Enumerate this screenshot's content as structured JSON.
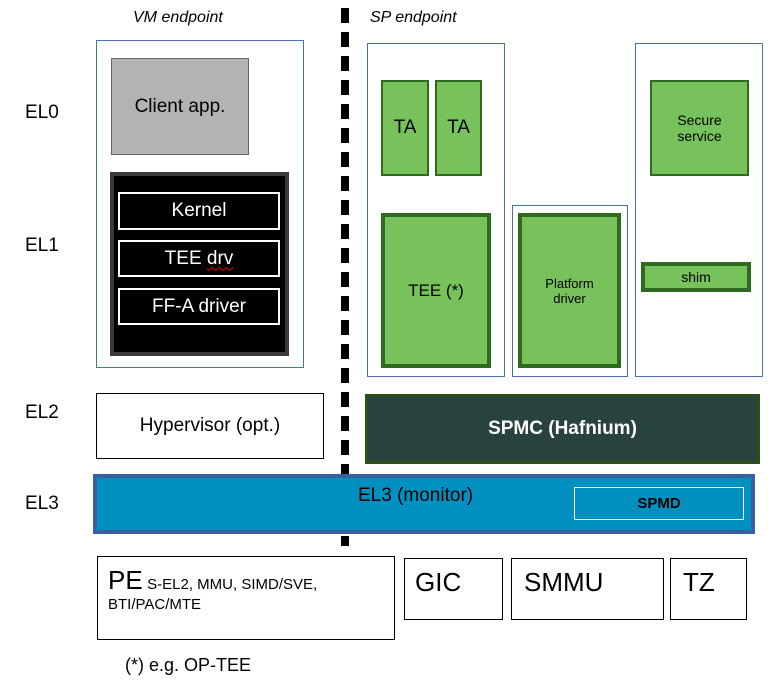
{
  "headers": {
    "vm": "VM endpoint",
    "sp": "SP endpoint"
  },
  "levels": {
    "el0": "EL0",
    "el1": "EL1",
    "el2": "EL2",
    "el3": "EL3"
  },
  "vm": {
    "client": "Client app.",
    "kernel": "Kernel",
    "tee_drv": "TEE drv",
    "ffa": "FF-A driver",
    "hypervisor": "Hypervisor (opt.)"
  },
  "sp": {
    "ta1": "TA",
    "ta2": "TA",
    "tee": "TEE (*)",
    "platform": "Platform driver",
    "secure_service": "Secure service",
    "shim": "shim",
    "spmc": "SPMC (Hafnium)"
  },
  "el3": {
    "monitor": "EL3 (monitor)",
    "spmd": "SPMD"
  },
  "hw": {
    "pe": "PE",
    "pe_features_1": "S-EL2, MMU, SIMD/SVE,",
    "pe_features_2": "BTI/PAC/MTE",
    "gic": "GIC",
    "smmu": "SMMU",
    "tz": "TZ"
  },
  "footnote": "(*) e.g. OP-TEE",
  "colors": {
    "green": "#77c25a",
    "spmc": "#27423f",
    "el3": "#0090bf",
    "client": "#b3b3b3"
  }
}
